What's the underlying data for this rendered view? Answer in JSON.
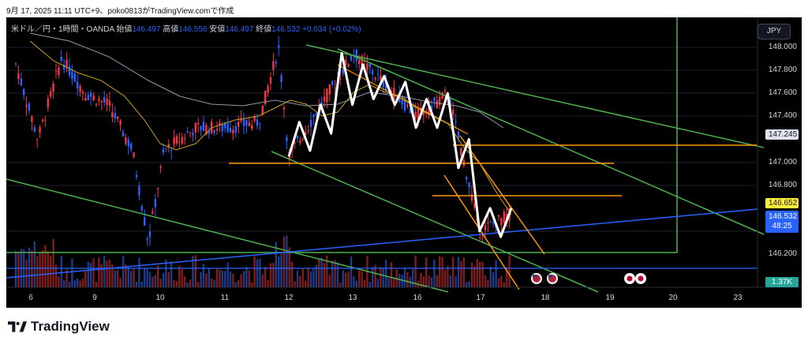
{
  "header": "9月 17, 2025 11:11 UTC+9、poko0813がTradingView.comで作成",
  "legend": {
    "symbol": "米ドル／円・1時間・OANDA",
    "open_label": "始値",
    "open": "146.497",
    "high_label": "高値",
    "high": "146.556",
    "low_label": "安値",
    "low": "146.497",
    "close_label": "終値",
    "close": "146.532",
    "change": "+0.034 (+0.02%)"
  },
  "currency_button": "JPY",
  "price_ticks": [
    "148.000",
    "147.800",
    "147.600",
    "147.400",
    "147.000",
    "146.800",
    "146.200"
  ],
  "badges": {
    "level_147245": "147.245",
    "level_146652": "146.652",
    "current_price": "146.532",
    "countdown": "48:25",
    "volume": "1.37K"
  },
  "date_ticks": [
    "6",
    "9",
    "10",
    "11",
    "12",
    "13",
    "16",
    "17",
    "18",
    "19",
    "20",
    "23"
  ],
  "footer_brand": "TradingView",
  "colors": {
    "up": "#2962ff",
    "down": "#f23645",
    "orange": "#ff9800",
    "green": "#4caf50",
    "blue_line": "#2962ff",
    "white_zigzag": "#ffffff"
  },
  "chart_data": {
    "type": "candlestick",
    "ylim": [
      146.0,
      148.2
    ],
    "close_path": [
      {
        "x": "12",
        "y": 147.05
      },
      {
        "x": "12",
        "y": 147.35
      },
      {
        "x": "12",
        "y": 147.1
      },
      {
        "x": "12",
        "y": 147.5
      },
      {
        "x": "12",
        "y": 147.25
      },
      {
        "x": "13",
        "y": 147.95
      },
      {
        "x": "13",
        "y": 147.5
      },
      {
        "x": "13",
        "y": 147.85
      },
      {
        "x": "13",
        "y": 147.55
      },
      {
        "x": "13",
        "y": 147.75
      },
      {
        "x": "13",
        "y": 147.5
      },
      {
        "x": "16",
        "y": 147.7
      },
      {
        "x": "16",
        "y": 147.3
      },
      {
        "x": "16",
        "y": 147.55
      },
      {
        "x": "16",
        "y": 147.3
      },
      {
        "x": "16",
        "y": 147.6
      },
      {
        "x": "17",
        "y": 146.95
      },
      {
        "x": "17",
        "y": 147.2
      },
      {
        "x": "17",
        "y": 146.4
      },
      {
        "x": "17",
        "y": 146.6
      },
      {
        "x": "17",
        "y": 146.35
      },
      {
        "x": "17",
        "y": 146.6
      }
    ],
    "horizontal_levels": [
      147.245,
      147.0,
      146.7,
      146.652
    ],
    "current_price": 146.532
  }
}
